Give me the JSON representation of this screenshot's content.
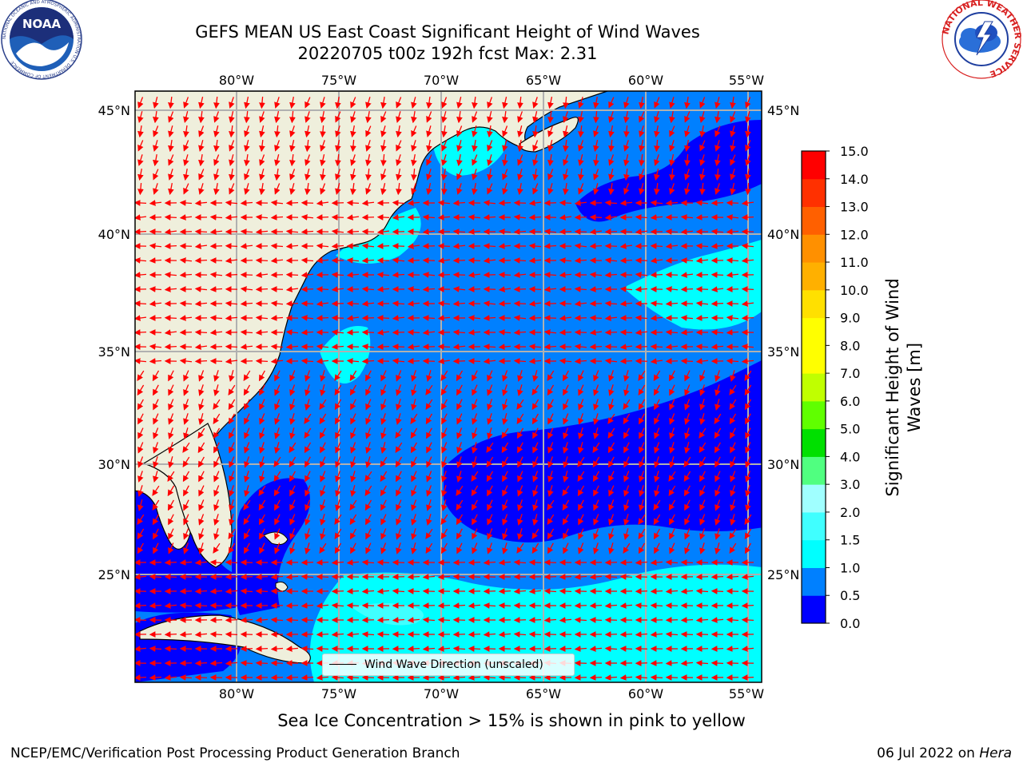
{
  "header": {
    "title_line1": "GEFS MEAN US East Coast Significant Height of Wind Waves",
    "title_line2": "20220705 t00z 192h fcst   Max: 2.31"
  },
  "logos": {
    "left": {
      "text": "NOAA",
      "ring_text": "NATIONAL OCEANIC AND ATMOSPHERIC ADMINISTRATION  U.S. DEPARTMENT OF COMMERCE"
    },
    "right": {
      "ring_text": "NATIONAL WEATHER SERVICE"
    }
  },
  "map": {
    "lon_labels": [
      "80°W",
      "75°W",
      "70°W",
      "65°W",
      "60°W",
      "55°W"
    ],
    "lat_labels": [
      "45°N",
      "40°N",
      "35°N",
      "30°N",
      "25°N"
    ],
    "legend_label": "Wind Wave Direction (unscaled)",
    "colors": {
      "land": "#efefdc",
      "coast": "#000000",
      "grid": "#b0b0b0",
      "arrow": "#ff0000"
    }
  },
  "colorbar": {
    "title": "Significant Height of Wind Waves [m]",
    "title_line1": "Significant Height of Wind",
    "title_line2": "Waves [m]",
    "ticks": [
      "0.0",
      "0.5",
      "1.0",
      "1.5",
      "2.0",
      "3.0",
      "4.0",
      "5.0",
      "6.0",
      "7.0",
      "8.0",
      "9.0",
      "10.0",
      "11.0",
      "12.0",
      "13.0",
      "14.0",
      "15.0"
    ],
    "colors": [
      "#0000ff",
      "#0080ff",
      "#00ffff",
      "#40ffff",
      "#a0ffff",
      "#50ff80",
      "#00e000",
      "#60ff00",
      "#c0ff00",
      "#ffff00",
      "#ffff00",
      "#ffe000",
      "#ffb000",
      "#ff9000",
      "#ff6000",
      "#ff3000",
      "#ff0000"
    ]
  },
  "chart_data": {
    "type": "heatmap",
    "variable": "Significant Height of Wind Waves",
    "units": "m",
    "max_value": 2.31,
    "lon_range": [
      -85,
      -54
    ],
    "lat_range": [
      20.5,
      46
    ],
    "levels": [
      0.0,
      0.5,
      1.0,
      1.5,
      2.0,
      3.0,
      4.0,
      5.0,
      6.0,
      7.0,
      8.0,
      9.0,
      10.0,
      11.0,
      12.0,
      13.0,
      14.0,
      15.0
    ]
  },
  "notes": {
    "ice": "Sea Ice Concentration > 15% is shown in pink to yellow"
  },
  "footer": {
    "left": "NCEP/EMC/Verification Post Processing Product Generation Branch",
    "right_date": "06 Jul 2022 on ",
    "right_host": "Hera"
  }
}
